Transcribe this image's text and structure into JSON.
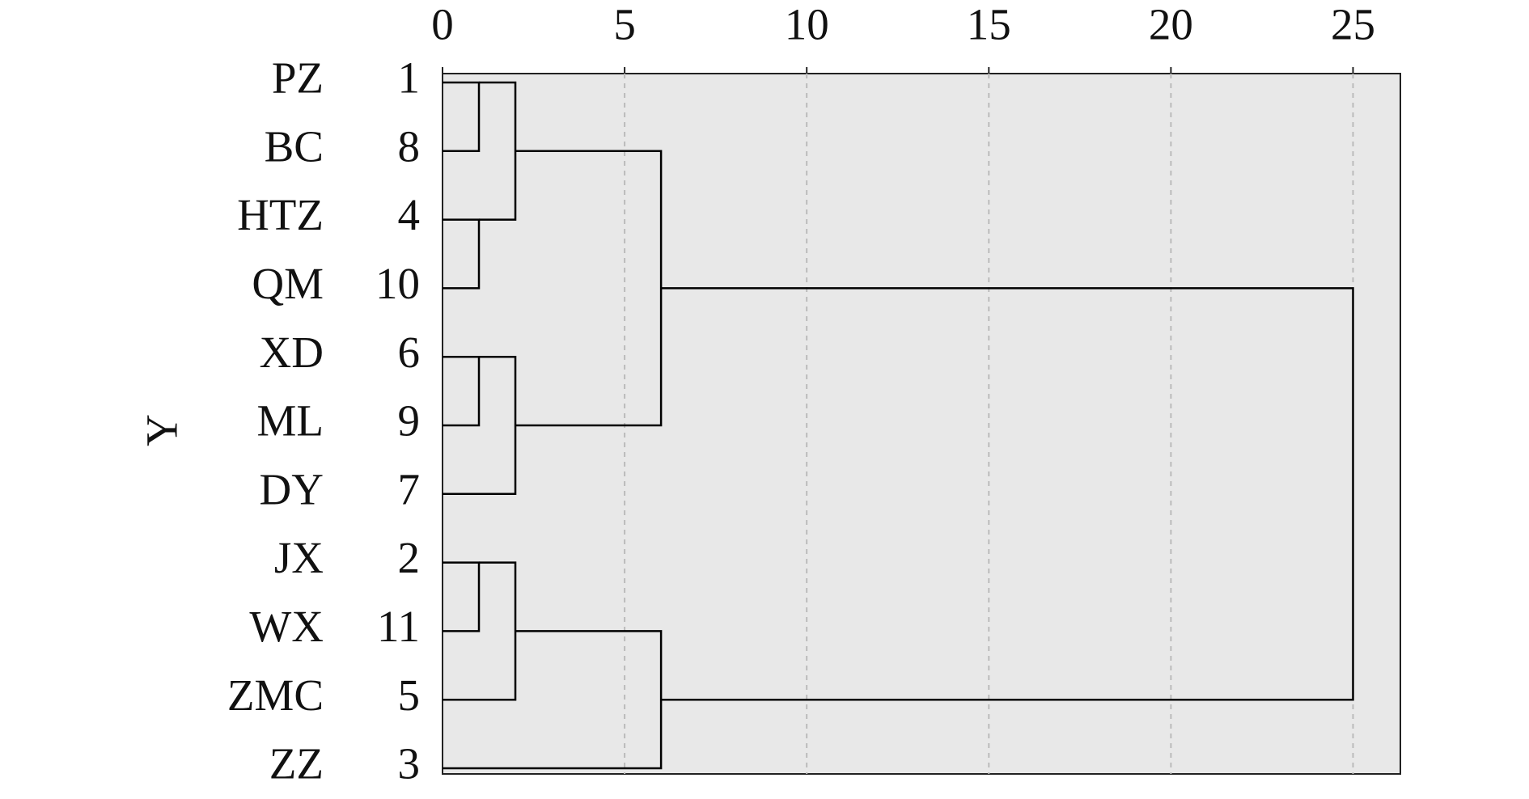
{
  "chart_data": {
    "type": "dendrogram",
    "ylabel": "Y",
    "leaf_labels": [
      "PZ",
      "BC",
      "HTZ",
      "QM",
      "XD",
      "ML",
      "DY",
      "JX",
      "WX",
      "ZMC",
      "ZZ"
    ],
    "leaf_numbers": [
      1,
      8,
      4,
      10,
      6,
      9,
      7,
      2,
      11,
      5,
      3
    ],
    "merges": [
      {
        "left": 0,
        "right": 1,
        "height": 1
      },
      {
        "left": 2,
        "right": 3,
        "height": 1
      },
      {
        "left": 11,
        "right": 12,
        "height": 2
      },
      {
        "left": 4,
        "right": 5,
        "height": 1
      },
      {
        "left": 14,
        "right": 6,
        "height": 2
      },
      {
        "left": 13,
        "right": 15,
        "height": 6
      },
      {
        "left": 7,
        "right": 8,
        "height": 1
      },
      {
        "left": 17,
        "right": 9,
        "height": 2
      },
      {
        "left": 18,
        "right": 10,
        "height": 6
      },
      {
        "left": 16,
        "right": 19,
        "height": 25
      }
    ],
    "xlim": [
      0,
      26.3
    ],
    "xticks": [
      0,
      5,
      10,
      15,
      20,
      25
    ],
    "grid": true,
    "background": "#e8e8e8",
    "color": "#000000"
  }
}
